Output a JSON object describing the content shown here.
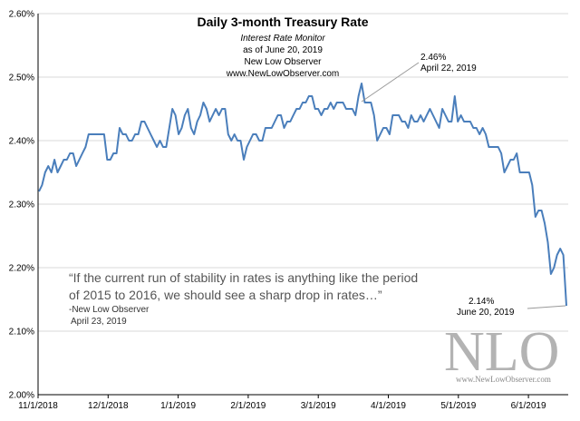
{
  "chart_data": {
    "type": "line",
    "title": "Daily 3-month  Treasury  Rate",
    "subtitle_lines": [
      "Interest Rate Monitor",
      "as of June 20, 2019",
      "New Low Observer",
      "www.NewLowObserver.com"
    ],
    "xlabel": "",
    "ylabel": "",
    "ylim": [
      2.0,
      2.6
    ],
    "y_ticks": [
      "2.00%",
      "2.10%",
      "2.20%",
      "2.30%",
      "2.40%",
      "2.50%",
      "2.60%"
    ],
    "x_ticks": [
      "11/1/2018",
      "12/1/2018",
      "1/1/2019",
      "2/1/2019",
      "3/1/2019",
      "4/1/2019",
      "5/1/2019",
      "6/1/2019"
    ],
    "grid": true,
    "line_color": "#4a7ebb",
    "series": [
      {
        "values": [
          2.32,
          2.33,
          2.35,
          2.36,
          2.35,
          2.37,
          2.35,
          2.36,
          2.37,
          2.37,
          2.38,
          2.38,
          2.36,
          2.37,
          2.38,
          2.39,
          2.41,
          2.41,
          2.41,
          2.41,
          2.41,
          2.41,
          2.37,
          2.37,
          2.38,
          2.38,
          2.42,
          2.41,
          2.41,
          2.4,
          2.4,
          2.41,
          2.41,
          2.43,
          2.43,
          2.42,
          2.41,
          2.4,
          2.39,
          2.4,
          2.39,
          2.39,
          2.42,
          2.45,
          2.44,
          2.41,
          2.42,
          2.44,
          2.45,
          2.42,
          2.41,
          2.43,
          2.44,
          2.46,
          2.45,
          2.43,
          2.44,
          2.45,
          2.44,
          2.45,
          2.45,
          2.41,
          2.4,
          2.41,
          2.4,
          2.4,
          2.37,
          2.39,
          2.4,
          2.41,
          2.41,
          2.4,
          2.4,
          2.42,
          2.42,
          2.42,
          2.43,
          2.44,
          2.44,
          2.42,
          2.43,
          2.43,
          2.44,
          2.45,
          2.45,
          2.46,
          2.46,
          2.47,
          2.47,
          2.45,
          2.45,
          2.44,
          2.45,
          2.45,
          2.46,
          2.45,
          2.46,
          2.46,
          2.46,
          2.45,
          2.45,
          2.45,
          2.44,
          2.47,
          2.49,
          2.46,
          2.46,
          2.46,
          2.44,
          2.4,
          2.41,
          2.42,
          2.42,
          2.41,
          2.44,
          2.44,
          2.44,
          2.43,
          2.43,
          2.42,
          2.44,
          2.43,
          2.43,
          2.44,
          2.43,
          2.44,
          2.45,
          2.44,
          2.43,
          2.42,
          2.45,
          2.44,
          2.43,
          2.43,
          2.47,
          2.43,
          2.44,
          2.43,
          2.43,
          2.43,
          2.42,
          2.42,
          2.41,
          2.42,
          2.41,
          2.39,
          2.39,
          2.39,
          2.39,
          2.38,
          2.35,
          2.36,
          2.37,
          2.37,
          2.38,
          2.35,
          2.35,
          2.35,
          2.35,
          2.33,
          2.28,
          2.29,
          2.29,
          2.27,
          2.24,
          2.19,
          2.2,
          2.22,
          2.23,
          2.22,
          2.14
        ]
      }
    ],
    "annotations": [
      {
        "value": "2.46%",
        "label": "April 22, 2019"
      },
      {
        "value": "2.14%",
        "label": "June 20, 2019"
      }
    ],
    "quote_lines": [
      "“If the current run of stability in rates is anything like the period",
      "of 2015 to 2016, we should see a sharp drop in rates…”"
    ],
    "quote_attribution": "-New Low Observer",
    "quote_date": "April 23, 2019",
    "logo_text": "NLO",
    "logo_url": "www.NewLowObserver.com"
  }
}
